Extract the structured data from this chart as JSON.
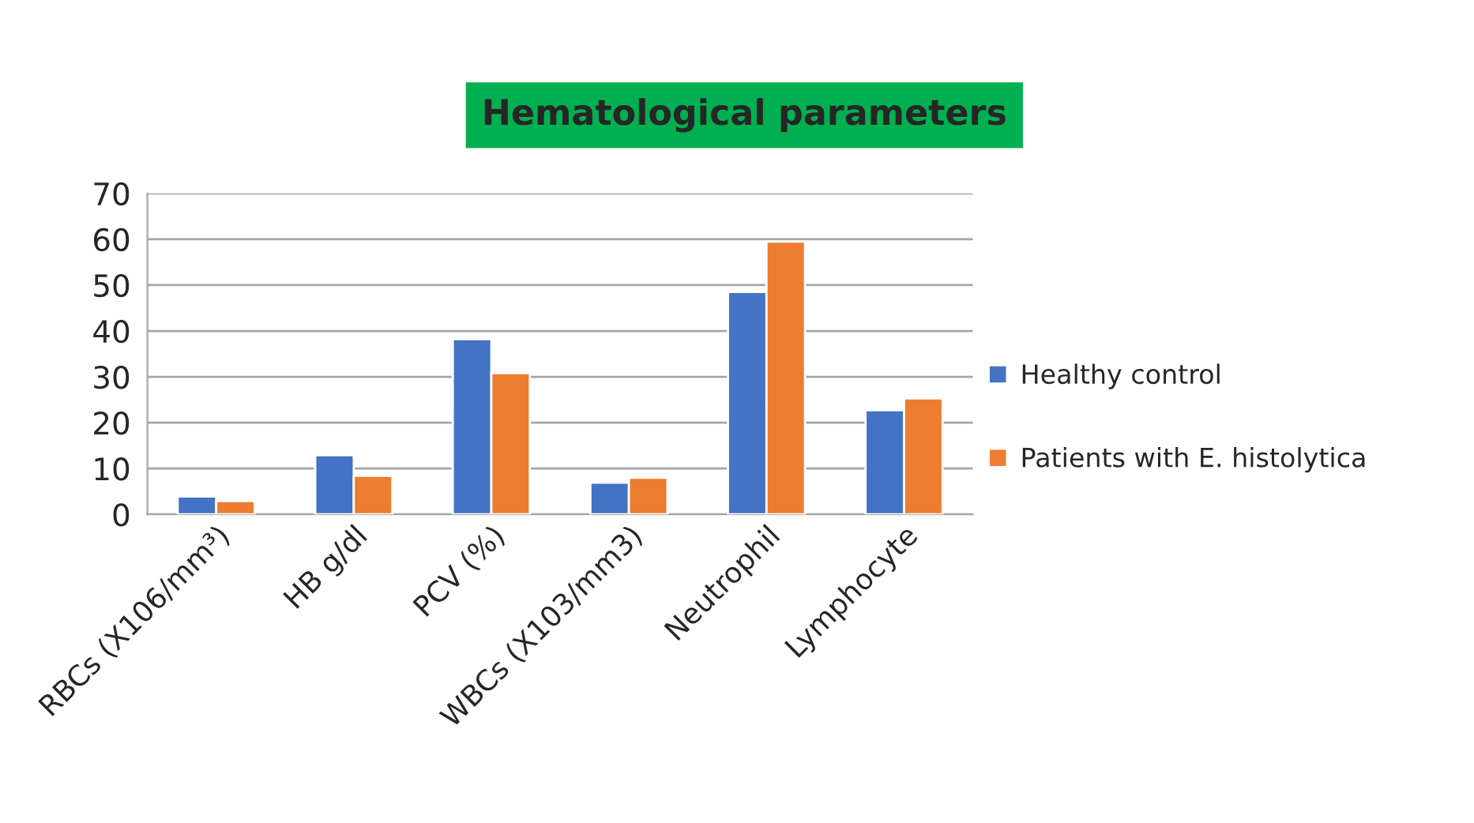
{
  "chart_data": {
    "type": "bar",
    "title": "Hematological parameters",
    "categories": [
      "RBCs (X106/mm³)",
      "HB g/dl",
      "PCV (%)",
      "WBCs (X103/mm3)",
      "Neutrophil",
      "Lymphocyte"
    ],
    "series": [
      {
        "name": "Healthy control",
        "color": "#4472c4",
        "values": [
          3.9,
          12.9,
          38.2,
          6.9,
          48.5,
          22.7
        ]
      },
      {
        "name": "Patients with E. histolytica",
        "color": "#ed7d31",
        "values": [
          2.9,
          8.4,
          30.8,
          8.0,
          59.5,
          25.3
        ]
      }
    ],
    "ylim": [
      0,
      70
    ],
    "yticks": [
      0,
      10,
      20,
      30,
      40,
      50,
      60,
      70
    ],
    "grid": "y",
    "legend": "right"
  }
}
